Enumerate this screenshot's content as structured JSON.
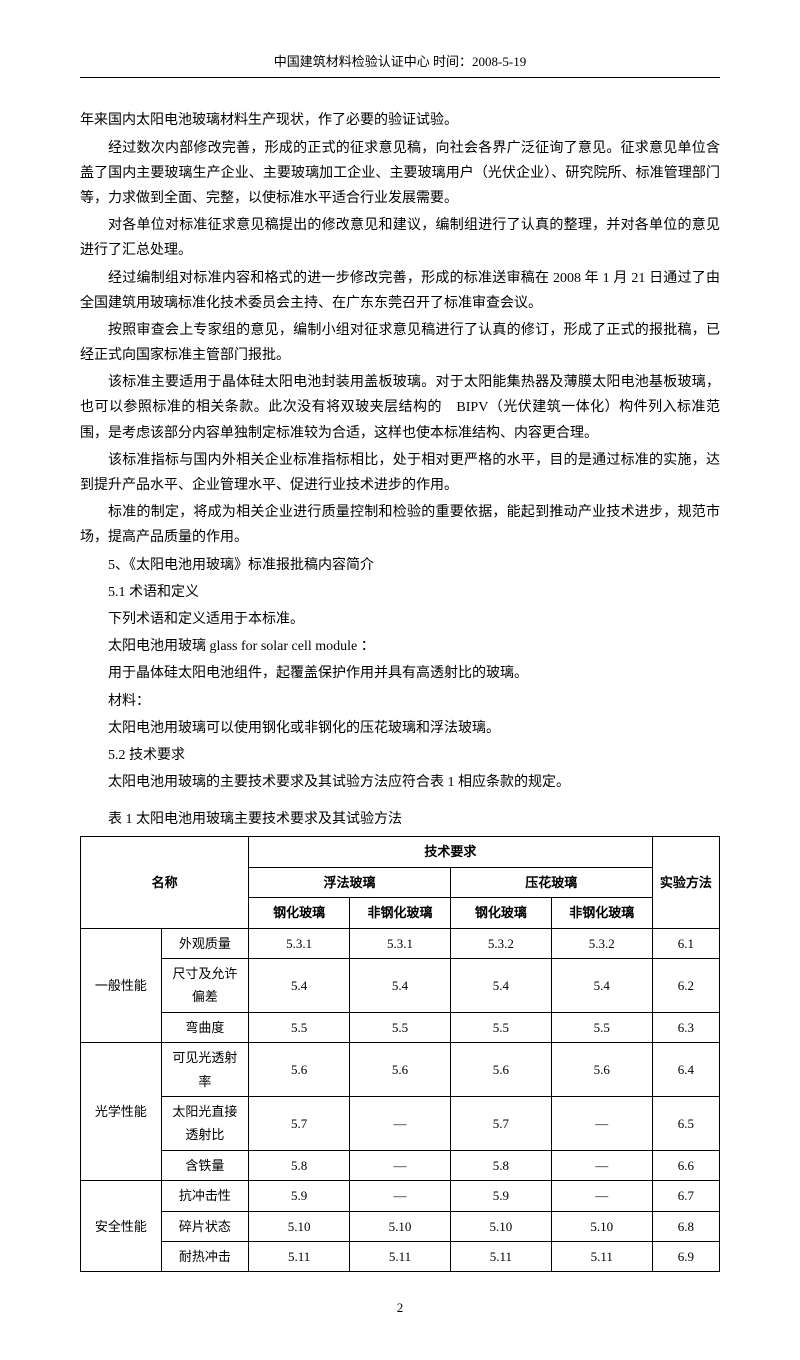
{
  "header": {
    "text": "中国建筑材料检验认证中心 时间：2008-5-19"
  },
  "paragraphs": {
    "p1": "年来国内太阳电池玻璃材料生产现状，作了必要的验证试验。",
    "p2": "经过数次内部修改完善，形成的正式的征求意见稿，向社会各界广泛征询了意见。征求意见单位含盖了国内主要玻璃生产企业、主要玻璃加工企业、主要玻璃用户（光伏企业）、研究院所、标准管理部门等，力求做到全面、完整，以使标准水平适合行业发展需要。",
    "p3": "对各单位对标准征求意见稿提出的修改意见和建议，编制组进行了认真的整理，并对各单位的意见进行了汇总处理。",
    "p4": "经过编制组对标准内容和格式的进一步修改完善，形成的标准送审稿在 2008 年 1 月 21 日通过了由全国建筑用玻璃标准化技术委员会主持、在广东东莞召开了标准审查会议。",
    "p5": "按照审查会上专家组的意见，编制小组对征求意见稿进行了认真的修订，形成了正式的报批稿，已经正式向国家标准主管部门报批。",
    "p6": "该标准主要适用于晶体硅太阳电池封装用盖板玻璃。对于太阳能集热器及薄膜太阳电池基板玻璃，也可以参照标准的相关条款。此次没有将双玻夹层结构的　BIPV（光伏建筑一体化）构件列入标准范围，是考虑该部分内容单独制定标准较为合适，这样也使本标准结构、内容更合理。",
    "p7": "该标准指标与国内外相关企业标准指标相比，处于相对更严格的水平，目的是通过标准的实施，达到提升产品水平、企业管理水平、促进行业技术进步的作用。",
    "p8": "标准的制定，将成为相关企业进行质量控制和检验的重要依据，能起到推动产业技术进步，规范市场，提高产品质量的作用。",
    "p9": "5、《太阳电池用玻璃》标准报批稿内容简介",
    "p10": "5.1 术语和定义",
    "p11": "下列术语和定义适用于本标准。",
    "p12": "太阳电池用玻璃 glass for solar cell module ：",
    "p13": "用于晶体硅太阳电池组件，起覆盖保护作用并具有高透射比的玻璃。",
    "p14": "材料：",
    "p15": "太阳电池用玻璃可以使用钢化或非钢化的压花玻璃和浮法玻璃。",
    "p16": "5.2 技术要求",
    "p17": "太阳电池用玻璃的主要技术要求及其试验方法应符合表 1 相应条款的规定。"
  },
  "table": {
    "caption": "表 1 太阳电池用玻璃主要技术要求及其试验方法",
    "headers": {
      "name": "名称",
      "tech": "技术要求",
      "method": "实验方法",
      "float_glass": "浮法玻璃",
      "pattern_glass": "压花玻璃",
      "tempered": "钢化玻璃",
      "non_tempered": "非钢化玻璃"
    },
    "rows": [
      {
        "category": "一般性能",
        "attr": "外观质量",
        "v1": "5.3.1",
        "v2": "5.3.1",
        "v3": "5.3.2",
        "v4": "5.3.2",
        "method": "6.1"
      },
      {
        "category": "",
        "attr": "尺寸及允许偏差",
        "v1": "5.4",
        "v2": "5.4",
        "v3": "5.4",
        "v4": "5.4",
        "method": "6.2"
      },
      {
        "category": "",
        "attr": "弯曲度",
        "v1": "5.5",
        "v2": "5.5",
        "v3": "5.5",
        "v4": "5.5",
        "method": "6.3"
      },
      {
        "category": "光学性能",
        "attr": "可见光透射率",
        "v1": "5.6",
        "v2": "5.6",
        "v3": "5.6",
        "v4": "5.6",
        "method": "6.4"
      },
      {
        "category": "",
        "attr": "太阳光直接透射比",
        "v1": "5.7",
        "v2": "—",
        "v3": "5.7",
        "v4": "—",
        "method": "6.5"
      },
      {
        "category": "",
        "attr": "含铁量",
        "v1": "5.8",
        "v2": "—",
        "v3": "5.8",
        "v4": "—",
        "method": "6.6"
      },
      {
        "category": "安全性能",
        "attr": "抗冲击性",
        "v1": "5.9",
        "v2": "—",
        "v3": "5.9",
        "v4": "—",
        "method": "6.7"
      },
      {
        "category": "",
        "attr": "碎片状态",
        "v1": "5.10",
        "v2": "5.10",
        "v3": "5.10",
        "v4": "5.10",
        "method": "6.8"
      },
      {
        "category": "",
        "attr": "耐热冲击",
        "v1": "5.11",
        "v2": "5.11",
        "v3": "5.11",
        "v4": "5.11",
        "method": "6.9"
      }
    ]
  },
  "page_number": "2"
}
